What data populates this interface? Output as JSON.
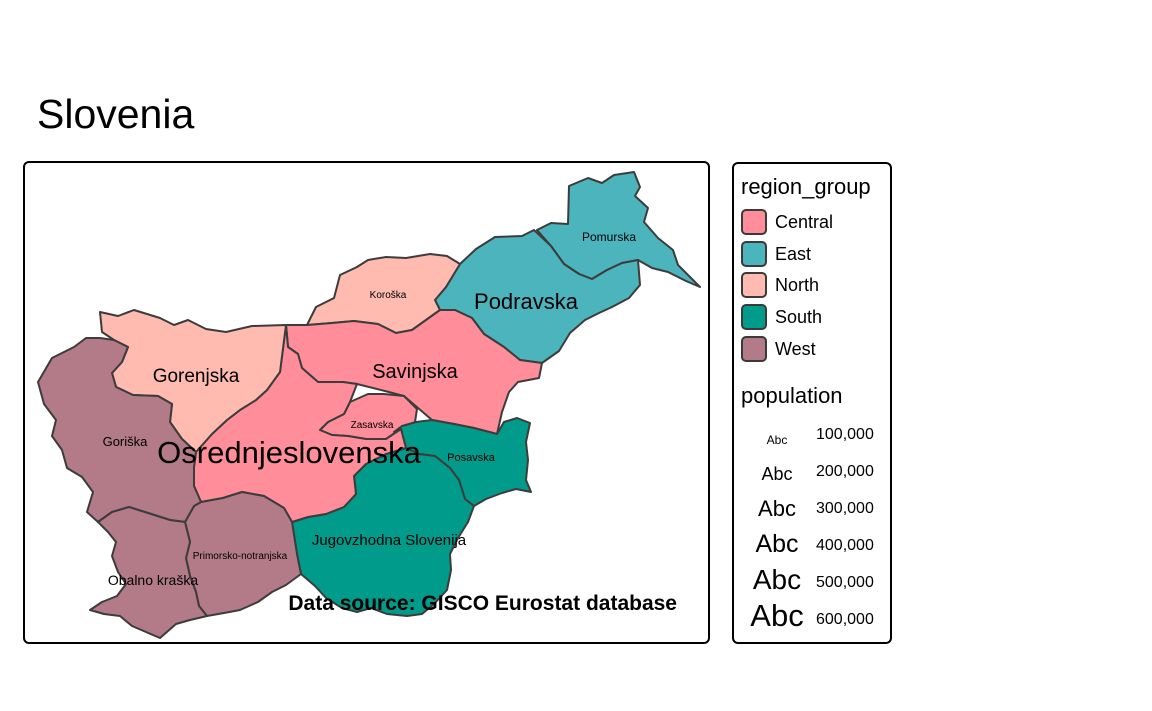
{
  "title": "Slovenia",
  "map": {
    "regions": [
      {
        "name": "Pomurska",
        "group": "East",
        "label_size": 12
      },
      {
        "name": "Podravska",
        "group": "East",
        "label_size": 22
      },
      {
        "name": "Koroška",
        "group": "North",
        "label_size": 10
      },
      {
        "name": "Savinjska",
        "group": "Central",
        "label_size": 20
      },
      {
        "name": "Zasavska",
        "group": "Central",
        "label_size": 10
      },
      {
        "name": "Posavska",
        "group": "South",
        "label_size": 11
      },
      {
        "name": "Jugovzhodna Slovenija",
        "group": "South",
        "label_size": 15
      },
      {
        "name": "Osrednjeslovenska",
        "group": "Central",
        "label_size": 31
      },
      {
        "name": "Gorenjska",
        "group": "North",
        "label_size": 19
      },
      {
        "name": "Primorsko-notranjska",
        "group": "West",
        "label_size": 10
      },
      {
        "name": "Goriška",
        "group": "West",
        "label_size": 13
      },
      {
        "name": "Obalno kraška",
        "group": "West",
        "label_size": 14
      }
    ],
    "credit": "Data source: GISCO Eurostat database"
  },
  "legend": {
    "fill_title": "region_group",
    "groups": [
      {
        "label": "Central",
        "color": "#FF8D9A"
      },
      {
        "label": "East",
        "color": "#4CB4BC"
      },
      {
        "label": "North",
        "color": "#FFBBB0"
      },
      {
        "label": "South",
        "color": "#009B8A"
      },
      {
        "label": "West",
        "color": "#B27B87"
      }
    ],
    "size_title": "population",
    "sizes": [
      {
        "sample": "Abc",
        "value": "100,000"
      },
      {
        "sample": "Abc",
        "value": "200,000"
      },
      {
        "sample": "Abc",
        "value": "300,000"
      },
      {
        "sample": "Abc",
        "value": "400,000"
      },
      {
        "sample": "Abc",
        "value": "500,000"
      },
      {
        "sample": "Abc",
        "value": "600,000"
      }
    ]
  }
}
